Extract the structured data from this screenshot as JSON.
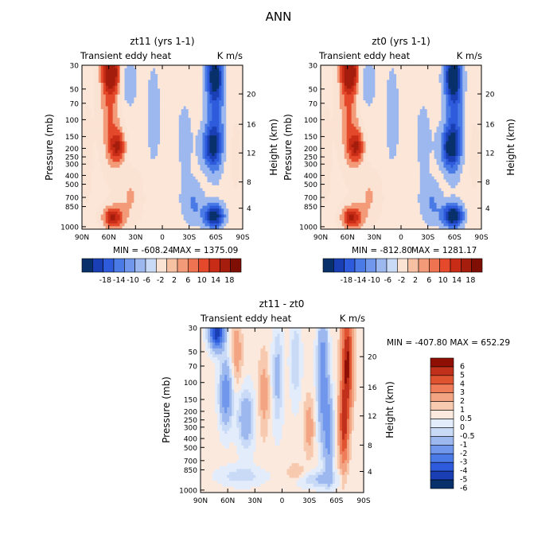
{
  "figure_title": "ANN",
  "colors": {
    "panel_scale": [
      "#08306b",
      "#1a3fb5",
      "#2e5bdc",
      "#4a7ae6",
      "#7097eb",
      "#9cb8ef",
      "#c9daf7",
      "#fbe3d4",
      "#f6c0a3",
      "#f39a78",
      "#ee7350",
      "#e3492a",
      "#c92c16",
      "#a51d0c",
      "#7f0e05"
    ],
    "diff_scale": [
      "#08306b",
      "#1a3fb5",
      "#2e5bdc",
      "#4a7ae6",
      "#7097eb",
      "#9cb8ef",
      "#c9daf7",
      "#e3ecfb",
      "#fbe9de",
      "#f7caaf",
      "#f3a583",
      "#ee7c58",
      "#e05331",
      "#c0301a",
      "#8f0f05"
    ],
    "neutral": "#fbe6d8"
  },
  "chart_data": [
    {
      "type": "heatmap",
      "id": "panel-zt11",
      "title": "zt11 (yrs 1-1)",
      "left_label": "Transient eddy heat",
      "right_label": "K m/s",
      "ylabel": "Pressure (mb)",
      "ylabel_right": "Height (km)",
      "x_ticks": [
        "90N",
        "60N",
        "30N",
        "0",
        "30S",
        "60S",
        "90S"
      ],
      "y_ticks": [
        "30",
        "50",
        "70",
        "100",
        "150",
        "200",
        "250",
        "300",
        "400",
        "500",
        "700",
        "850",
        "1000"
      ],
      "y_right_ticks": [
        "20",
        "16",
        "12",
        "8",
        "4"
      ],
      "min_label": "MIN = -608.24",
      "max_label": "MAX = 1375.09",
      "colorbar_labels": [
        "-18",
        "-14",
        "-10",
        "-6",
        "-2",
        "2",
        "6",
        "10",
        "14",
        "18"
      ],
      "field_scale": 1.0
    },
    {
      "type": "heatmap",
      "id": "panel-zt0",
      "title": "zt0 (yrs 1-1)",
      "left_label": "Transient eddy heat",
      "right_label": "K m/s",
      "ylabel": "Pressure (mb)",
      "ylabel_right": "Height (km)",
      "x_ticks": [
        "90N",
        "60N",
        "30N",
        "0",
        "30S",
        "60S",
        "90S"
      ],
      "y_ticks": [
        "30",
        "50",
        "70",
        "100",
        "150",
        "200",
        "250",
        "300",
        "400",
        "500",
        "700",
        "850",
        "1000"
      ],
      "y_right_ticks": [
        "20",
        "16",
        "12",
        "8",
        "4"
      ],
      "min_label": "MIN = -812.80",
      "max_label": "MAX = 1281.17",
      "colorbar_labels": [
        "-18",
        "-14",
        "-10",
        "-6",
        "-2",
        "2",
        "6",
        "10",
        "14",
        "18"
      ],
      "field_scale": 1.08
    },
    {
      "type": "heatmap",
      "id": "panel-diff",
      "title": "zt11 - zt0",
      "left_label": "Transient eddy heat",
      "right_label": "K m/s",
      "ylabel": "Pressure (mb)",
      "ylabel_right": "Height (km)",
      "x_ticks": [
        "90N",
        "60N",
        "30N",
        "0",
        "30S",
        "60S",
        "90S"
      ],
      "y_ticks": [
        "30",
        "50",
        "70",
        "100",
        "150",
        "200",
        "250",
        "300",
        "400",
        "500",
        "700",
        "850",
        "1000"
      ],
      "y_right_ticks": [
        "20",
        "16",
        "12",
        "8",
        "4"
      ],
      "minmax_label": "MIN = -407.80  MAX = 652.29",
      "colorbar_labels": [
        "6",
        "5",
        "4",
        "3",
        "2",
        "1",
        "0.5",
        "0",
        "-0.5",
        "-1",
        "-2",
        "-3",
        "-4",
        "-5",
        "-6"
      ]
    }
  ]
}
